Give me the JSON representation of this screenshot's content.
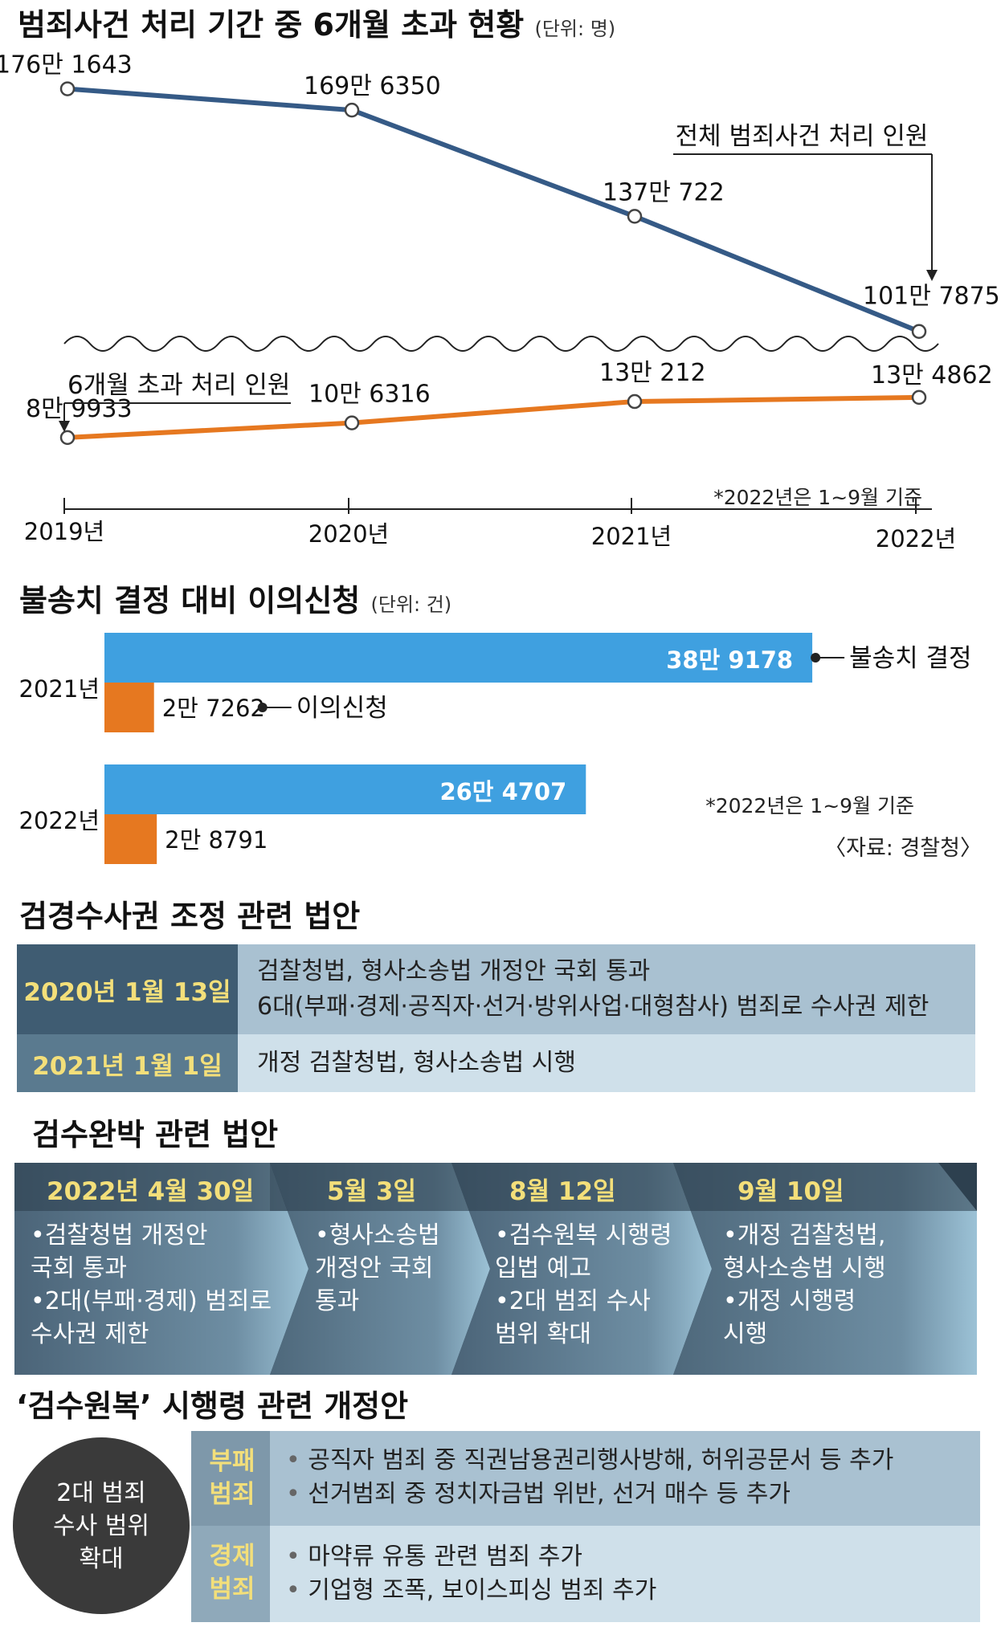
{
  "title": "범죄사건 처리 기간 중 6개월 초과 현황",
  "title_unit": "(단위: 명)",
  "chart_data": [
    {
      "type": "line",
      "title": "범죄사건 처리 기간 중 6개월 초과 현황",
      "unit": "(단위: 명)",
      "x": [
        "2019년",
        "2020년",
        "2021년",
        "2022년"
      ],
      "series": [
        {
          "name": "전체 범죄사건 처리 인원",
          "values": [
            1761643,
            1696350,
            1370722,
            1017875
          ],
          "labels": [
            "176만 1643",
            "169만 6350",
            "137만 722",
            "101만 7875"
          ],
          "color": "#355a86"
        },
        {
          "name": "6개월 초과 처리 인원",
          "values": [
            89933,
            106316,
            130212,
            134862
          ],
          "labels": [
            "8만 9933",
            "10만 6316",
            "13만 212",
            "13만 4862"
          ],
          "color": "#e67820"
        }
      ],
      "annotation": "*2022년은 1~9월 기준"
    },
    {
      "type": "bar",
      "title": "불송치 결정 대비 이의신청",
      "unit": "(단위: 건)",
      "categories": [
        "2021년",
        "2022년"
      ],
      "series": [
        {
          "name": "불송치 결정",
          "values": [
            389178,
            264707
          ],
          "labels": [
            "38만 9178",
            "26만 4707"
          ],
          "color": "#3fa0e0"
        },
        {
          "name": "이의신청",
          "values": [
            27262,
            28791
          ],
          "labels": [
            "2만 7262",
            "2만 8791"
          ],
          "color": "#e67820"
        }
      ],
      "note": "*2022년은 1~9월 기준",
      "source": "〈자료: 경찰청〉"
    }
  ],
  "law1": {
    "title": "검경수사권 조정 관련 법안",
    "rows": [
      {
        "date": "2020년 1월 13일",
        "lines": [
          "검찰청법, 형사소송법 개정안 국회 통과",
          "6대(부패·경제·공직자·선거·방위사업·대형참사) 범죄로 수사권 제한"
        ]
      },
      {
        "date": "2021년 1월 1일",
        "lines": [
          "개정 검찰청법, 형사소송법 시행"
        ]
      }
    ]
  },
  "law2": {
    "title": "검수완박 관련 법안",
    "steps": [
      {
        "date": "2022년 4월 30일",
        "lines": [
          "•검찰청법 개정안",
          "  국회 통과",
          "•2대(부패·경제) 범죄로",
          "  수사권 제한"
        ]
      },
      {
        "date": "5월 3일",
        "lines": [
          "•형사소송법",
          "  개정안 국회",
          "  통과"
        ]
      },
      {
        "date": "8월 12일",
        "lines": [
          "•검수원복 시행령",
          "  입법 예고",
          "•2대 범죄 수사",
          "  범위 확대"
        ]
      },
      {
        "date": "9월 10일",
        "lines": [
          "•개정 검찰청법,",
          "  형사소송법 시행",
          "•개정 시행령",
          "  시행"
        ]
      }
    ]
  },
  "law3": {
    "title": "‘검수원복’ 시행령 관련 개정안",
    "circle": [
      "2대 범죄",
      "수사 범위",
      "확대"
    ],
    "rows": [
      {
        "category": [
          "부패",
          "범죄"
        ],
        "items": [
          "공직자 범죄 중 직권남용권리행사방해, 허위공문서 등 추가",
          "선거범죄 중 정치자금법 위반, 선거 매수 등 추가"
        ]
      },
      {
        "category": [
          "경제",
          "범죄"
        ],
        "items": [
          "마약류 유통 관련 범죄 추가",
          "기업형 조폭, 보이스피싱 범죄 추가"
        ]
      }
    ]
  }
}
